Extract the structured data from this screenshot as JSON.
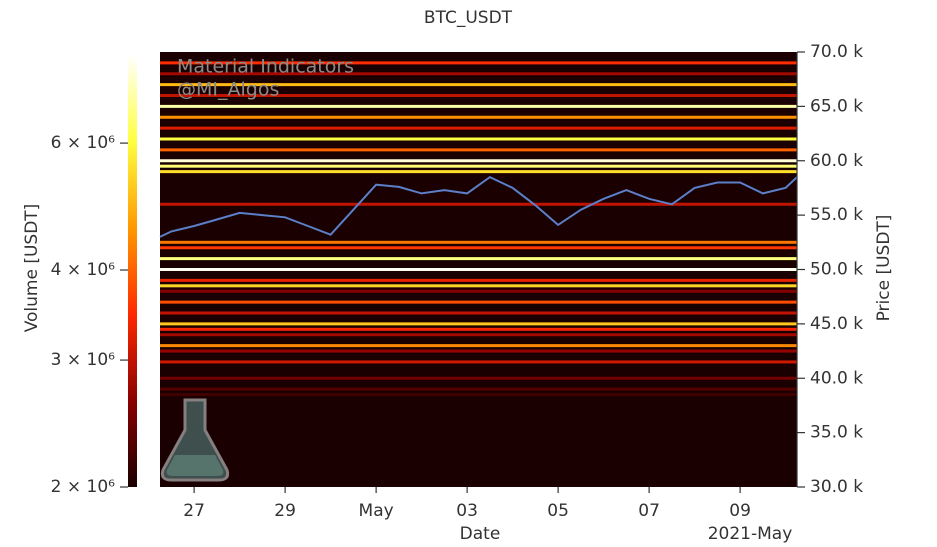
{
  "chart_data": {
    "type": "heatmap",
    "title": "BTC_USDT",
    "x_label": "Date",
    "x_offset_label": "2021-May",
    "y_label": "Price [USDT]",
    "colorbar_label": "Volume [USDT]",
    "watermark": [
      "Material Indicators",
      "@MI_Algos"
    ],
    "xlim": [
      "2021-04-26T06:00",
      "2021-05-10T06:00"
    ],
    "xticks": [
      {
        "value": "2021-04-27T00:00",
        "label": "27"
      },
      {
        "value": "2021-04-29T00:00",
        "label": "29"
      },
      {
        "value": "2021-05-01T00:00",
        "label": "May"
      },
      {
        "value": "2021-05-03T00:00",
        "label": "03"
      },
      {
        "value": "2021-05-05T00:00",
        "label": "05"
      },
      {
        "value": "2021-05-07T00:00",
        "label": "07"
      },
      {
        "value": "2021-05-09T00:00",
        "label": "09"
      }
    ],
    "ylim": [
      30000,
      70000
    ],
    "yticks": [
      {
        "value": 30000,
        "label": "30.0 k"
      },
      {
        "value": 35000,
        "label": "35.0 k"
      },
      {
        "value": 40000,
        "label": "40.0 k"
      },
      {
        "value": 45000,
        "label": "45.0 k"
      },
      {
        "value": 50000,
        "label": "50.0 k"
      },
      {
        "value": 55000,
        "label": "55.0 k"
      },
      {
        "value": 60000,
        "label": "60.0 k"
      },
      {
        "value": 65000,
        "label": "65.0 k"
      },
      {
        "value": 70000,
        "label": "70.0 k"
      }
    ],
    "clim": [
      2000000,
      7950000
    ],
    "color_log_scale": true,
    "cticks": [
      {
        "value": 2000000,
        "label": "2 × 10⁶"
      },
      {
        "value": 3000000,
        "label": "3 × 10⁶"
      },
      {
        "value": 4000000,
        "label": "4 × 10⁶"
      },
      {
        "value": 6000000,
        "label": "6 × 10⁶"
      }
    ],
    "colormap": [
      "#1a0000",
      "#8b0000",
      "#ff2a00",
      "#ff9900",
      "#ffff40",
      "#ffffff"
    ],
    "background": "#1a0000",
    "levels": {
      "prices": [
        69000,
        68000,
        67000,
        66000,
        65000,
        64000,
        63000,
        62000,
        61000,
        60000,
        59500,
        59000,
        56000,
        52500,
        52000,
        51000,
        50000,
        49000,
        48500,
        48000,
        47000,
        46000,
        45000,
        44500,
        44000,
        43000,
        42500,
        41500,
        40000,
        39000,
        38500
      ],
      "volumes": [
        3500000,
        2800000,
        5000000,
        3000000,
        7000000,
        4500000,
        3200000,
        6000000,
        4000000,
        7500000,
        6500000,
        5500000,
        3000000,
        4200000,
        3600000,
        6600000,
        7800000,
        3300000,
        5400000,
        2600000,
        3800000,
        3000000,
        5200000,
        3400000,
        2800000,
        4400000,
        2700000,
        3100000,
        2500000,
        2300000,
        2200000
      ]
    },
    "series": [
      {
        "name": "Price",
        "color": "#5b7fc9",
        "x": [
          "2021-04-26T06:00",
          "2021-04-26T12:00",
          "2021-04-27T00:00",
          "2021-04-27T12:00",
          "2021-04-28T00:00",
          "2021-04-28T12:00",
          "2021-04-29T00:00",
          "2021-04-29T12:00",
          "2021-04-30T00:00",
          "2021-04-30T12:00",
          "2021-05-01T00:00",
          "2021-05-01T12:00",
          "2021-05-02T00:00",
          "2021-05-02T12:00",
          "2021-05-03T00:00",
          "2021-05-03T12:00",
          "2021-05-04T00:00",
          "2021-05-04T12:00",
          "2021-05-05T00:00",
          "2021-05-05T12:00",
          "2021-05-06T00:00",
          "2021-05-06T12:00",
          "2021-05-07T00:00",
          "2021-05-07T12:00",
          "2021-05-08T00:00",
          "2021-05-08T12:00",
          "2021-05-09T00:00",
          "2021-05-09T12:00",
          "2021-05-10T00:00",
          "2021-05-10T06:00"
        ],
        "values": [
          53000,
          53500,
          54000,
          54600,
          55200,
          55000,
          54800,
          54000,
          53200,
          55500,
          57800,
          57600,
          57000,
          57300,
          57000,
          58500,
          57500,
          55900,
          54100,
          55500,
          56500,
          57300,
          56500,
          56000,
          57500,
          58000,
          58000,
          57000,
          57500,
          58500
        ]
      }
    ]
  }
}
